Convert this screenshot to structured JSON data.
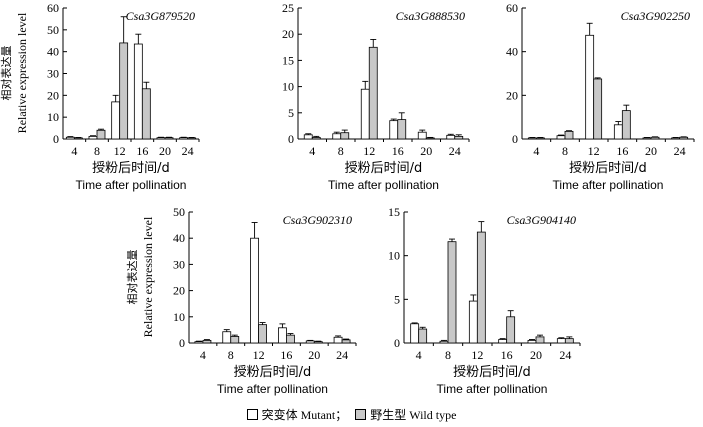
{
  "figure": {
    "ylabel_cn": "相对表达量",
    "ylabel_en": "Relative expression level",
    "xlabel_cn": "授粉后时间/d",
    "xlabel_en": "Time after pollination"
  },
  "legend": {
    "mutant_label": "突变体 Mutant；",
    "wildtype_label": "野生型 Wild type"
  },
  "colors": {
    "mutant": "#ffffff",
    "wildtype": "#c8c8c8",
    "stroke": "#000000"
  },
  "chart_data": [
    {
      "type": "bar",
      "title": "Csa3G879520",
      "categories": [
        "4",
        "8",
        "12",
        "16",
        "20",
        "24"
      ],
      "yticks": [
        "0",
        "10",
        "20",
        "30",
        "40",
        "50",
        "60"
      ],
      "ylim": [
        0,
        60
      ],
      "series": [
        {
          "name": "Mutant",
          "values": [
            0.8,
            1.2,
            17,
            43.5,
            0.6,
            0.6
          ],
          "errors": [
            0.3,
            0.3,
            3,
            4.5,
            0.2,
            0.2
          ]
        },
        {
          "name": "Wild type",
          "values": [
            0.5,
            4,
            44,
            23,
            0.6,
            0.5
          ],
          "errors": [
            0.2,
            0.5,
            12,
            3,
            0.2,
            0.2
          ]
        }
      ]
    },
    {
      "type": "bar",
      "title": "Csa3G888530",
      "categories": [
        "4",
        "8",
        "12",
        "16",
        "20",
        "24"
      ],
      "yticks": [
        "0",
        "5",
        "10",
        "15",
        "20",
        "25"
      ],
      "ylim": [
        0,
        25
      ],
      "series": [
        {
          "name": "Mutant",
          "values": [
            0.8,
            1,
            9.5,
            3.5,
            1.3,
            0.7
          ],
          "errors": [
            0.2,
            0.3,
            1.5,
            0.3,
            0.4,
            0.2
          ]
        },
        {
          "name": "Wild type",
          "values": [
            0.3,
            1.2,
            17.5,
            3.7,
            0.2,
            0.5
          ],
          "errors": [
            0.2,
            0.5,
            1.5,
            1.3,
            0.1,
            0.3
          ]
        }
      ]
    },
    {
      "type": "bar",
      "title": "Csa3G902250",
      "categories": [
        "4",
        "8",
        "12",
        "16",
        "20",
        "24"
      ],
      "yticks": [
        "0",
        "20",
        "40",
        "60"
      ],
      "ylim": [
        0,
        60
      ],
      "series": [
        {
          "name": "Mutant",
          "values": [
            0.5,
            1.5,
            47.5,
            6.5,
            0.5,
            0.5
          ],
          "errors": [
            0.2,
            0.3,
            5.5,
            1.5,
            0.2,
            0.2
          ]
        },
        {
          "name": "Wild type",
          "values": [
            0.5,
            3.5,
            27.5,
            13,
            0.8,
            0.8
          ],
          "errors": [
            0.2,
            0.3,
            0.5,
            2.5,
            0.2,
            0.2
          ]
        }
      ]
    },
    {
      "type": "bar",
      "title": "Csa3G902310",
      "categories": [
        "4",
        "8",
        "12",
        "16",
        "20",
        "24"
      ],
      "yticks": [
        "0",
        "10",
        "20",
        "30",
        "40",
        "50"
      ],
      "ylim": [
        0,
        50
      ],
      "series": [
        {
          "name": "Mutant",
          "values": [
            0.5,
            4.3,
            40,
            5.8,
            0.8,
            2.2
          ],
          "errors": [
            0.2,
            0.8,
            6,
            1.5,
            0.2,
            0.5
          ]
        },
        {
          "name": "Wild type",
          "values": [
            1,
            2.5,
            7,
            3,
            0.5,
            1.2
          ],
          "errors": [
            0.3,
            0.5,
            0.8,
            0.6,
            0.2,
            0.3
          ]
        }
      ]
    },
    {
      "type": "bar",
      "title": "Csa3G904140",
      "categories": [
        "4",
        "8",
        "12",
        "16",
        "20",
        "24"
      ],
      "yticks": [
        "0",
        "5",
        "10",
        "15"
      ],
      "ylim": [
        0,
        15
      ],
      "series": [
        {
          "name": "Mutant",
          "values": [
            2.2,
            0.2,
            4.8,
            0.4,
            0.3,
            0.5
          ],
          "errors": [
            0.1,
            0.1,
            0.7,
            0.1,
            0.1,
            0.1
          ]
        },
        {
          "name": "Wild type",
          "values": [
            1.6,
            11.6,
            12.7,
            3,
            0.7,
            0.5
          ],
          "errors": [
            0.2,
            0.3,
            1.2,
            0.7,
            0.2,
            0.2
          ]
        }
      ]
    }
  ]
}
